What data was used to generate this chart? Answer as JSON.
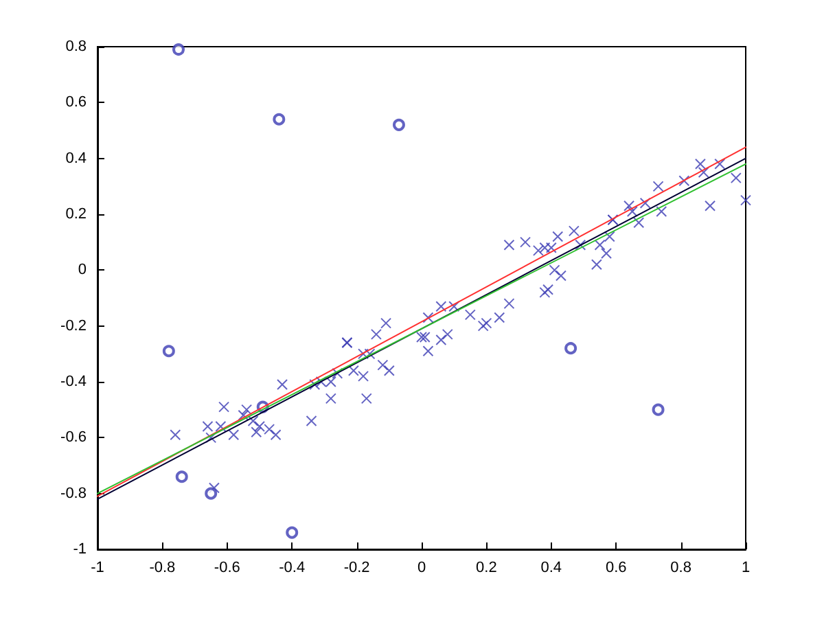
{
  "chart_data": {
    "type": "scatter",
    "xlim": [
      -1,
      1
    ],
    "xticks": [
      -1,
      -0.8,
      -0.6,
      -0.4,
      -0.2,
      0,
      0.2,
      0.4,
      0.6,
      0.8,
      1
    ],
    "ylim": [
      -1,
      0.8
    ],
    "yticks": [
      -1,
      -0.8,
      -0.6,
      -0.4,
      -0.2,
      0,
      0.2,
      0.4,
      0.6,
      0.8
    ],
    "series": [
      {
        "marker": "cross",
        "color": "#3c3cb4",
        "x": [
          -0.76,
          -0.66,
          -0.65,
          -0.64,
          -0.62,
          -0.61,
          -0.58,
          -0.55,
          -0.54,
          -0.52,
          -0.51,
          -0.5,
          -0.47,
          -0.45,
          -0.43,
          -0.34,
          -0.33,
          -0.31,
          -0.28,
          -0.28,
          -0.26,
          -0.23,
          -0.23,
          -0.21,
          -0.18,
          -0.18,
          -0.17,
          -0.16,
          -0.14,
          -0.12,
          -0.11,
          -0.1,
          0.01,
          0,
          0.02,
          0.02,
          0.06,
          0.06,
          0.08,
          0.1,
          0.15,
          0.19,
          0.2,
          0.24,
          0.27,
          0.38,
          0.39,
          0.27,
          0.32,
          0.36,
          0.38,
          0.4,
          0.42,
          0.41,
          0.43,
          0.47,
          0.49,
          0.54,
          0.55,
          0.57,
          0.58,
          0.59,
          0.59,
          0.64,
          0.65,
          0.67,
          0.69,
          0.73,
          0.74,
          0.81,
          0.86,
          0.87,
          0.89,
          0.92,
          0.97,
          1
        ],
        "values": [
          -0.59,
          -0.56,
          -0.6,
          -0.78,
          -0.56,
          -0.49,
          -0.59,
          -0.52,
          -0.5,
          -0.54,
          -0.58,
          -0.56,
          -0.57,
          -0.59,
          -0.41,
          -0.54,
          -0.41,
          -0.4,
          -0.46,
          -0.4,
          -0.37,
          -0.26,
          -0.26,
          -0.36,
          -0.3,
          -0.38,
          -0.46,
          -0.3,
          -0.23,
          -0.34,
          -0.19,
          -0.36,
          -0.24,
          -0.24,
          -0.29,
          -0.17,
          -0.13,
          -0.25,
          -0.23,
          -0.13,
          -0.16,
          -0.2,
          -0.19,
          -0.17,
          -0.12,
          -0.08,
          -0.07,
          0.09,
          0.1,
          0.07,
          0.08,
          0.08,
          0.12,
          0,
          -0.02,
          0.14,
          0.09,
          0.02,
          0.09,
          0.06,
          0.12,
          0.18,
          0.18,
          0.23,
          0.21,
          0.17,
          0.24,
          0.3,
          0.21,
          0.32,
          0.38,
          0.35,
          0.23,
          0.38,
          0.33,
          0.25
        ]
      },
      {
        "marker": "circle",
        "color": "#3c3cb4",
        "x": [
          -0.75,
          -0.44,
          -0.07,
          -0.78,
          -0.74,
          -0.65,
          -0.49,
          -0.4,
          0.46,
          0.73
        ],
        "values": [
          0.79,
          0.54,
          0.52,
          -0.29,
          -0.74,
          -0.8,
          -0.49,
          -0.94,
          -0.28,
          -0.5
        ]
      },
      {
        "type": "line",
        "marker": "none",
        "line_style": "solid",
        "color": "#ff3030",
        "x": [
          -1,
          1
        ],
        "values": [
          -0.81,
          0.44
        ]
      },
      {
        "type": "line",
        "marker": "none",
        "line_style": "solid",
        "color": "#000033",
        "x": [
          -1,
          1
        ],
        "values": [
          -0.82,
          0.4
        ]
      },
      {
        "type": "line",
        "marker": "none",
        "line_style": "solid",
        "color": "#30c030",
        "x": [
          -1,
          1
        ],
        "values": [
          -0.8,
          0.38
        ]
      }
    ]
  }
}
